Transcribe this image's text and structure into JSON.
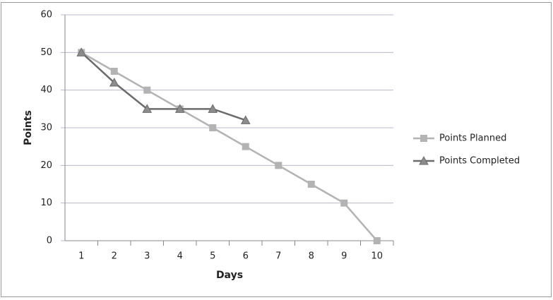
{
  "chart_data": {
    "type": "line",
    "x_label": "Days",
    "y_label": "Points",
    "categories": [
      "1",
      "2",
      "3",
      "4",
      "5",
      "6",
      "7",
      "8",
      "9",
      "10"
    ],
    "series": [
      {
        "name": "Points Planned",
        "color": "#b3b3b3",
        "marker": "square",
        "values": [
          50,
          45,
          40,
          35,
          30,
          25,
          20,
          15,
          10,
          0
        ]
      },
      {
        "name": "Points Completed",
        "color": "#6b6b6b",
        "marker": "triangle",
        "values": [
          50,
          42,
          35,
          35,
          35,
          32,
          null,
          null,
          null,
          null
        ]
      }
    ],
    "ylim": [
      0,
      60
    ],
    "yticks": [
      0,
      10,
      20,
      30,
      40,
      50,
      60
    ],
    "grid": true,
    "legend": "right"
  }
}
